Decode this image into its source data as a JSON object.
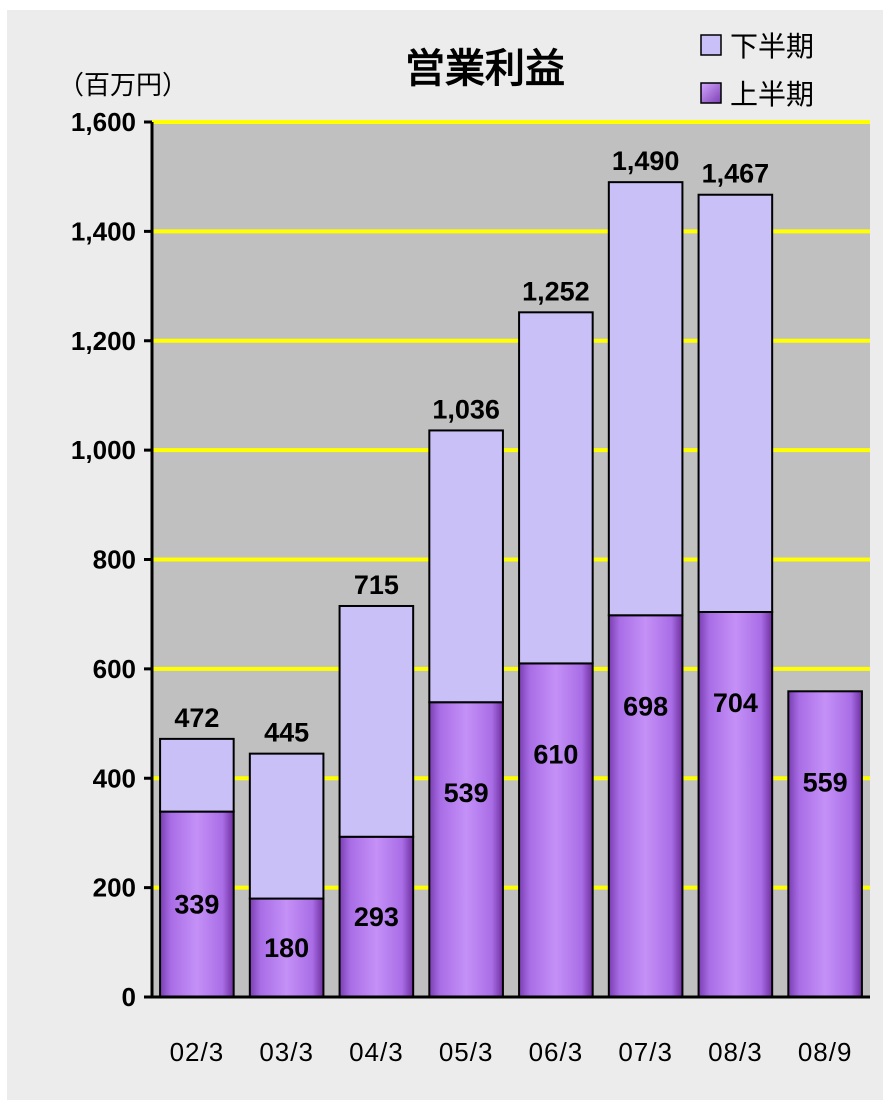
{
  "chart_data": {
    "type": "bar",
    "stacked": true,
    "title": "営業利益",
    "unit_label": "（百万円）",
    "categories": [
      "02/3",
      "03/3",
      "04/3",
      "05/3",
      "06/3",
      "07/3",
      "08/3",
      "08/9"
    ],
    "series": [
      {
        "name": "上半期",
        "color": "#b884f0",
        "values": [
          339,
          180,
          293,
          539,
          610,
          698,
          704,
          559
        ]
      },
      {
        "name": "下半期",
        "color": "#c9c0f7",
        "values": [
          133,
          265,
          422,
          497,
          642,
          792,
          763,
          null
        ]
      }
    ],
    "totals": [
      472,
      445,
      715,
      1036,
      1252,
      1490,
      1467,
      null
    ],
    "total_labels": [
      "472",
      "445",
      "715",
      "1,036",
      "1,252",
      "1,490",
      "1,467",
      ""
    ],
    "first_half_labels": [
      "339",
      "180",
      "293",
      "539",
      "610",
      "698",
      "704",
      "559"
    ],
    "ylim": [
      0,
      1600
    ],
    "yticks": [
      0,
      200,
      400,
      600,
      800,
      1000,
      1200,
      1400,
      1600
    ],
    "ytick_labels": [
      "0",
      "200",
      "400",
      "600",
      "800",
      "1,000",
      "1,200",
      "1,400",
      "1,600"
    ],
    "xlabel": "",
    "ylabel": "",
    "grid": true,
    "grid_color": "#ffff00",
    "plot_background": "#c0c0c0",
    "legend_position": "top-right",
    "legend": [
      "下半期",
      "上半期"
    ]
  }
}
